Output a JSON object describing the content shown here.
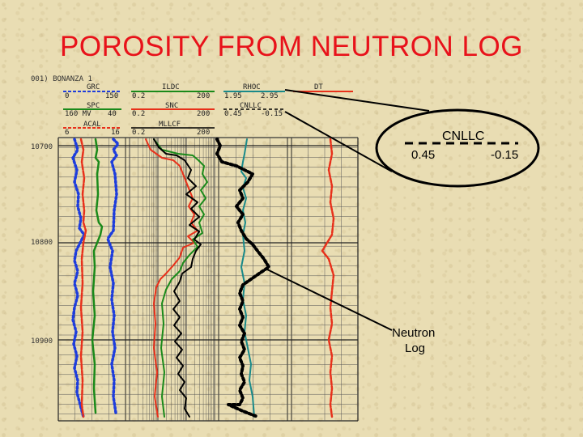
{
  "title": "POROSITY FROM NEUTRON LOG",
  "well_header": "001) BONANZA 1",
  "track1": {
    "grc": {
      "name": "GRC",
      "min": "0",
      "max": "150",
      "color": "#1e3ddc"
    },
    "spc": {
      "name": "SPC",
      "min": "160 MV",
      "max": "40",
      "color": "#1a8a1a"
    },
    "acal": {
      "name": "ACAL",
      "min": "6",
      "max": "16",
      "color": "#e8301a"
    }
  },
  "track2": {
    "ildc": {
      "name": "ILDC",
      "min": "0.2",
      "max": "200",
      "color": "#1a8a1a"
    },
    "snc": {
      "name": "SNC",
      "min": "0.2",
      "max": "200",
      "color": "#e8301a"
    },
    "mllcf": {
      "name": "MLLCF",
      "min": "0.2",
      "max": "200",
      "color": "#000000"
    }
  },
  "track3": {
    "rhoc": {
      "name": "RHOC",
      "min": "1.95",
      "max": "2.95",
      "color": "#1a8a8a"
    },
    "cnllc": {
      "name": "CNLLC",
      "min": "0.45",
      "max": "-0.15",
      "color": "#000000"
    }
  },
  "track4": {
    "dt": {
      "name": "DT",
      "color": "#e8301a"
    }
  },
  "depths": [
    "10700",
    "10800",
    "10900"
  ],
  "callout": {
    "name": "CNLLC",
    "left_value": "0.45",
    "right_value": "-0.15"
  },
  "annotation": {
    "line1": "Neutron",
    "line2": "Log"
  }
}
